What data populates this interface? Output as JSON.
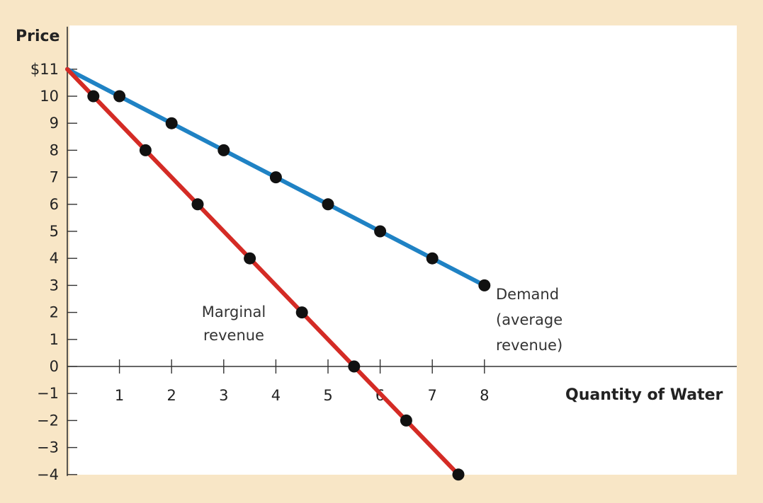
{
  "chart_data": {
    "type": "line",
    "ylabel": "Price",
    "xlabel": "Quantity of Water",
    "xlim": [
      0,
      8
    ],
    "ylim": [
      -4,
      11
    ],
    "x_ticks": [
      1,
      2,
      3,
      4,
      5,
      6,
      7,
      8
    ],
    "x_tick_labels": [
      "1",
      "2",
      "3",
      "4",
      "5",
      "6",
      "7",
      "8"
    ],
    "y_ticks": [
      11,
      10,
      9,
      8,
      7,
      6,
      5,
      4,
      3,
      2,
      1,
      0,
      -1,
      -2,
      -3,
      -4
    ],
    "y_tick_labels": [
      "$11",
      "10",
      "9",
      "8",
      "7",
      "6",
      "5",
      "4",
      "3",
      "2",
      "1",
      "0",
      "−1",
      "−2",
      "−3",
      "−4"
    ],
    "grid": false,
    "colors": {
      "background": "#f8e6c6",
      "plot_background": "#ffffff",
      "axis": "#333333"
    },
    "series": [
      {
        "name": "Demand (average revenue)",
        "label_lines": [
          "Demand",
          "(average",
          "revenue)"
        ],
        "color": "#1f82c4",
        "line": [
          [
            0,
            11
          ],
          [
            8,
            3
          ]
        ],
        "points": [
          [
            1,
            10
          ],
          [
            2,
            9
          ],
          [
            3,
            8
          ],
          [
            4,
            7
          ],
          [
            5,
            6
          ],
          [
            6,
            5
          ],
          [
            7,
            4
          ],
          [
            8,
            3
          ]
        ]
      },
      {
        "name": "Marginal revenue",
        "label_lines": [
          "Marginal",
          "revenue"
        ],
        "color": "#d42b25",
        "line": [
          [
            0,
            11
          ],
          [
            7.5,
            -4
          ]
        ],
        "points": [
          [
            0.5,
            10
          ],
          [
            1.5,
            8
          ],
          [
            2.5,
            6
          ],
          [
            3.5,
            4
          ],
          [
            4.5,
            2
          ],
          [
            5.5,
            0
          ],
          [
            6.5,
            -2
          ],
          [
            7.5,
            -4
          ]
        ]
      }
    ]
  }
}
